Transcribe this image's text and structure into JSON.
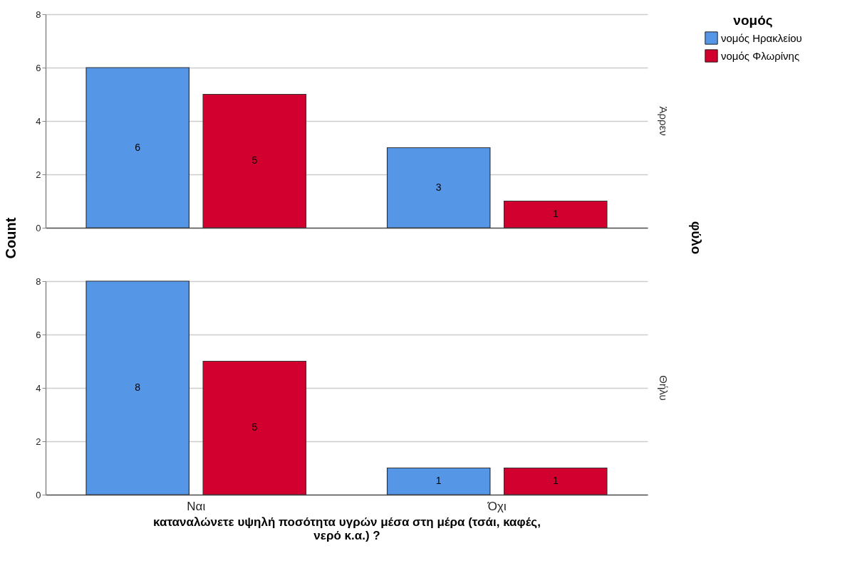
{
  "chart_data": [
    {
      "type": "bar",
      "categories": [
        null,
        null
      ],
      "ylabel": "Count",
      "legend_title": "νομός",
      "legend": "top right",
      "grid": "y",
      "tick_labels": "y",
      "data_labels": true,
      "ylim": [
        0,
        8
      ],
      "yticks": [
        0,
        2,
        4,
        6,
        8
      ],
      "annotations": [
        "Άρρεν",
        "φύλο"
      ],
      "series": [
        {
          "name": "νομός Ηρακλείου",
          "color": "#5596e6",
          "values": [
            6,
            3
          ]
        },
        {
          "name": "νομός Φλωρίνης",
          "color": "#d1002e",
          "values": [
            5,
            1
          ]
        }
      ]
    },
    {
      "type": "bar",
      "categories": [
        "Ναι",
        "Όχι"
      ],
      "xlabel": "καταναλώνετε υψηλή ποσότητα υγρών μέσα στη μέρα (τσάι, καφές, νερό κ.α.) ?",
      "grid": "y",
      "data_labels": true,
      "ylim": [
        0,
        8
      ],
      "yticks": [
        0,
        2,
        4,
        6,
        8
      ],
      "annotations": [
        "Θήλυ"
      ],
      "series": [
        {
          "color": "#5596e6",
          "values": [
            8,
            1
          ]
        },
        {
          "color": "#d1002e",
          "values": [
            5,
            1
          ]
        }
      ]
    }
  ]
}
